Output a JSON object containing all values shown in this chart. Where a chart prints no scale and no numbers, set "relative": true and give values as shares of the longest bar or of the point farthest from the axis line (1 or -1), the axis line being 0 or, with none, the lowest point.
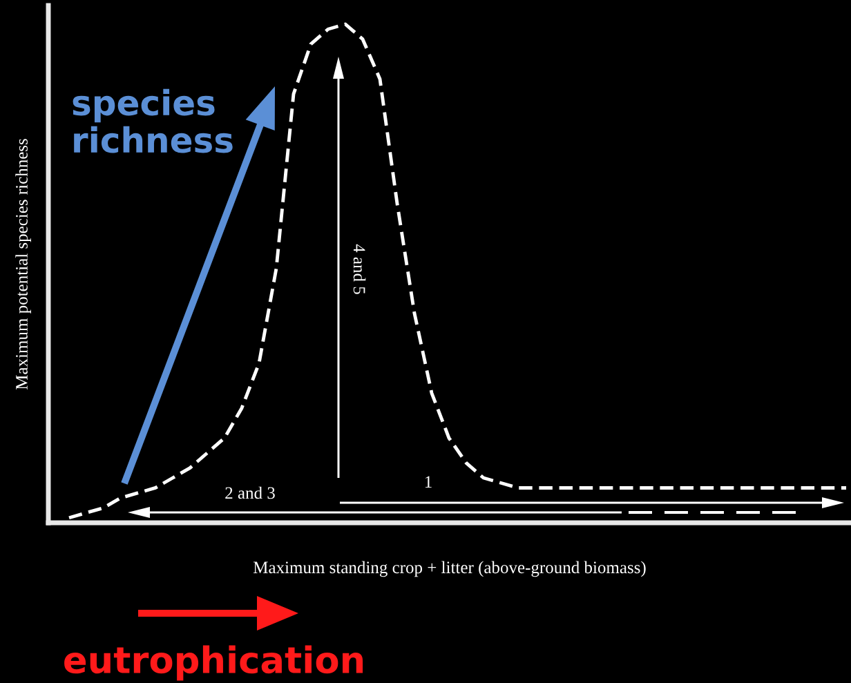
{
  "chart_data": {
    "type": "line",
    "relative": true,
    "xlabel": "Maximum standing crop + litter (above-ground biomass)",
    "ylabel": "Maximum potential species richness",
    "categories": [
      null,
      null,
      null,
      null,
      null,
      null,
      null,
      null,
      null,
      null,
      null,
      null,
      null,
      null,
      null,
      null,
      null,
      null,
      null,
      null,
      null,
      null,
      null,
      null,
      null,
      null,
      null,
      null,
      null,
      null,
      null,
      null,
      null,
      null,
      null,
      null,
      null,
      null,
      null,
      null,
      null,
      null,
      null,
      null,
      null,
      null
    ],
    "series": [
      {
        "color": "#ffffff",
        "values": [
          0.01,
          0.02,
          0.03,
          0.05,
          0.06,
          0.07,
          0.09,
          0.11,
          0.14,
          0.17,
          0.23,
          0.32,
          0.51,
          0.86,
          0.96,
          0.99,
          1,
          0.97,
          0.89,
          0.64,
          0.42,
          0.26,
          0.17,
          0.12,
          0.09,
          0.08,
          0.07,
          0.07,
          0.07,
          0.07,
          0.07,
          0.07,
          0.07,
          0.07,
          0.07,
          0.07,
          0.07,
          0.07,
          0.07,
          0.07,
          0.07,
          0.07,
          0.07,
          0.07,
          0.07,
          0.07
        ]
      }
    ],
    "line_style": "dashed",
    "marker": "none",
    "legend": false,
    "tick_labels": false,
    "annotations": [
      "species\nrichness",
      "4 and 5",
      "1",
      "2 and 3",
      "eutrophication"
    ]
  }
}
